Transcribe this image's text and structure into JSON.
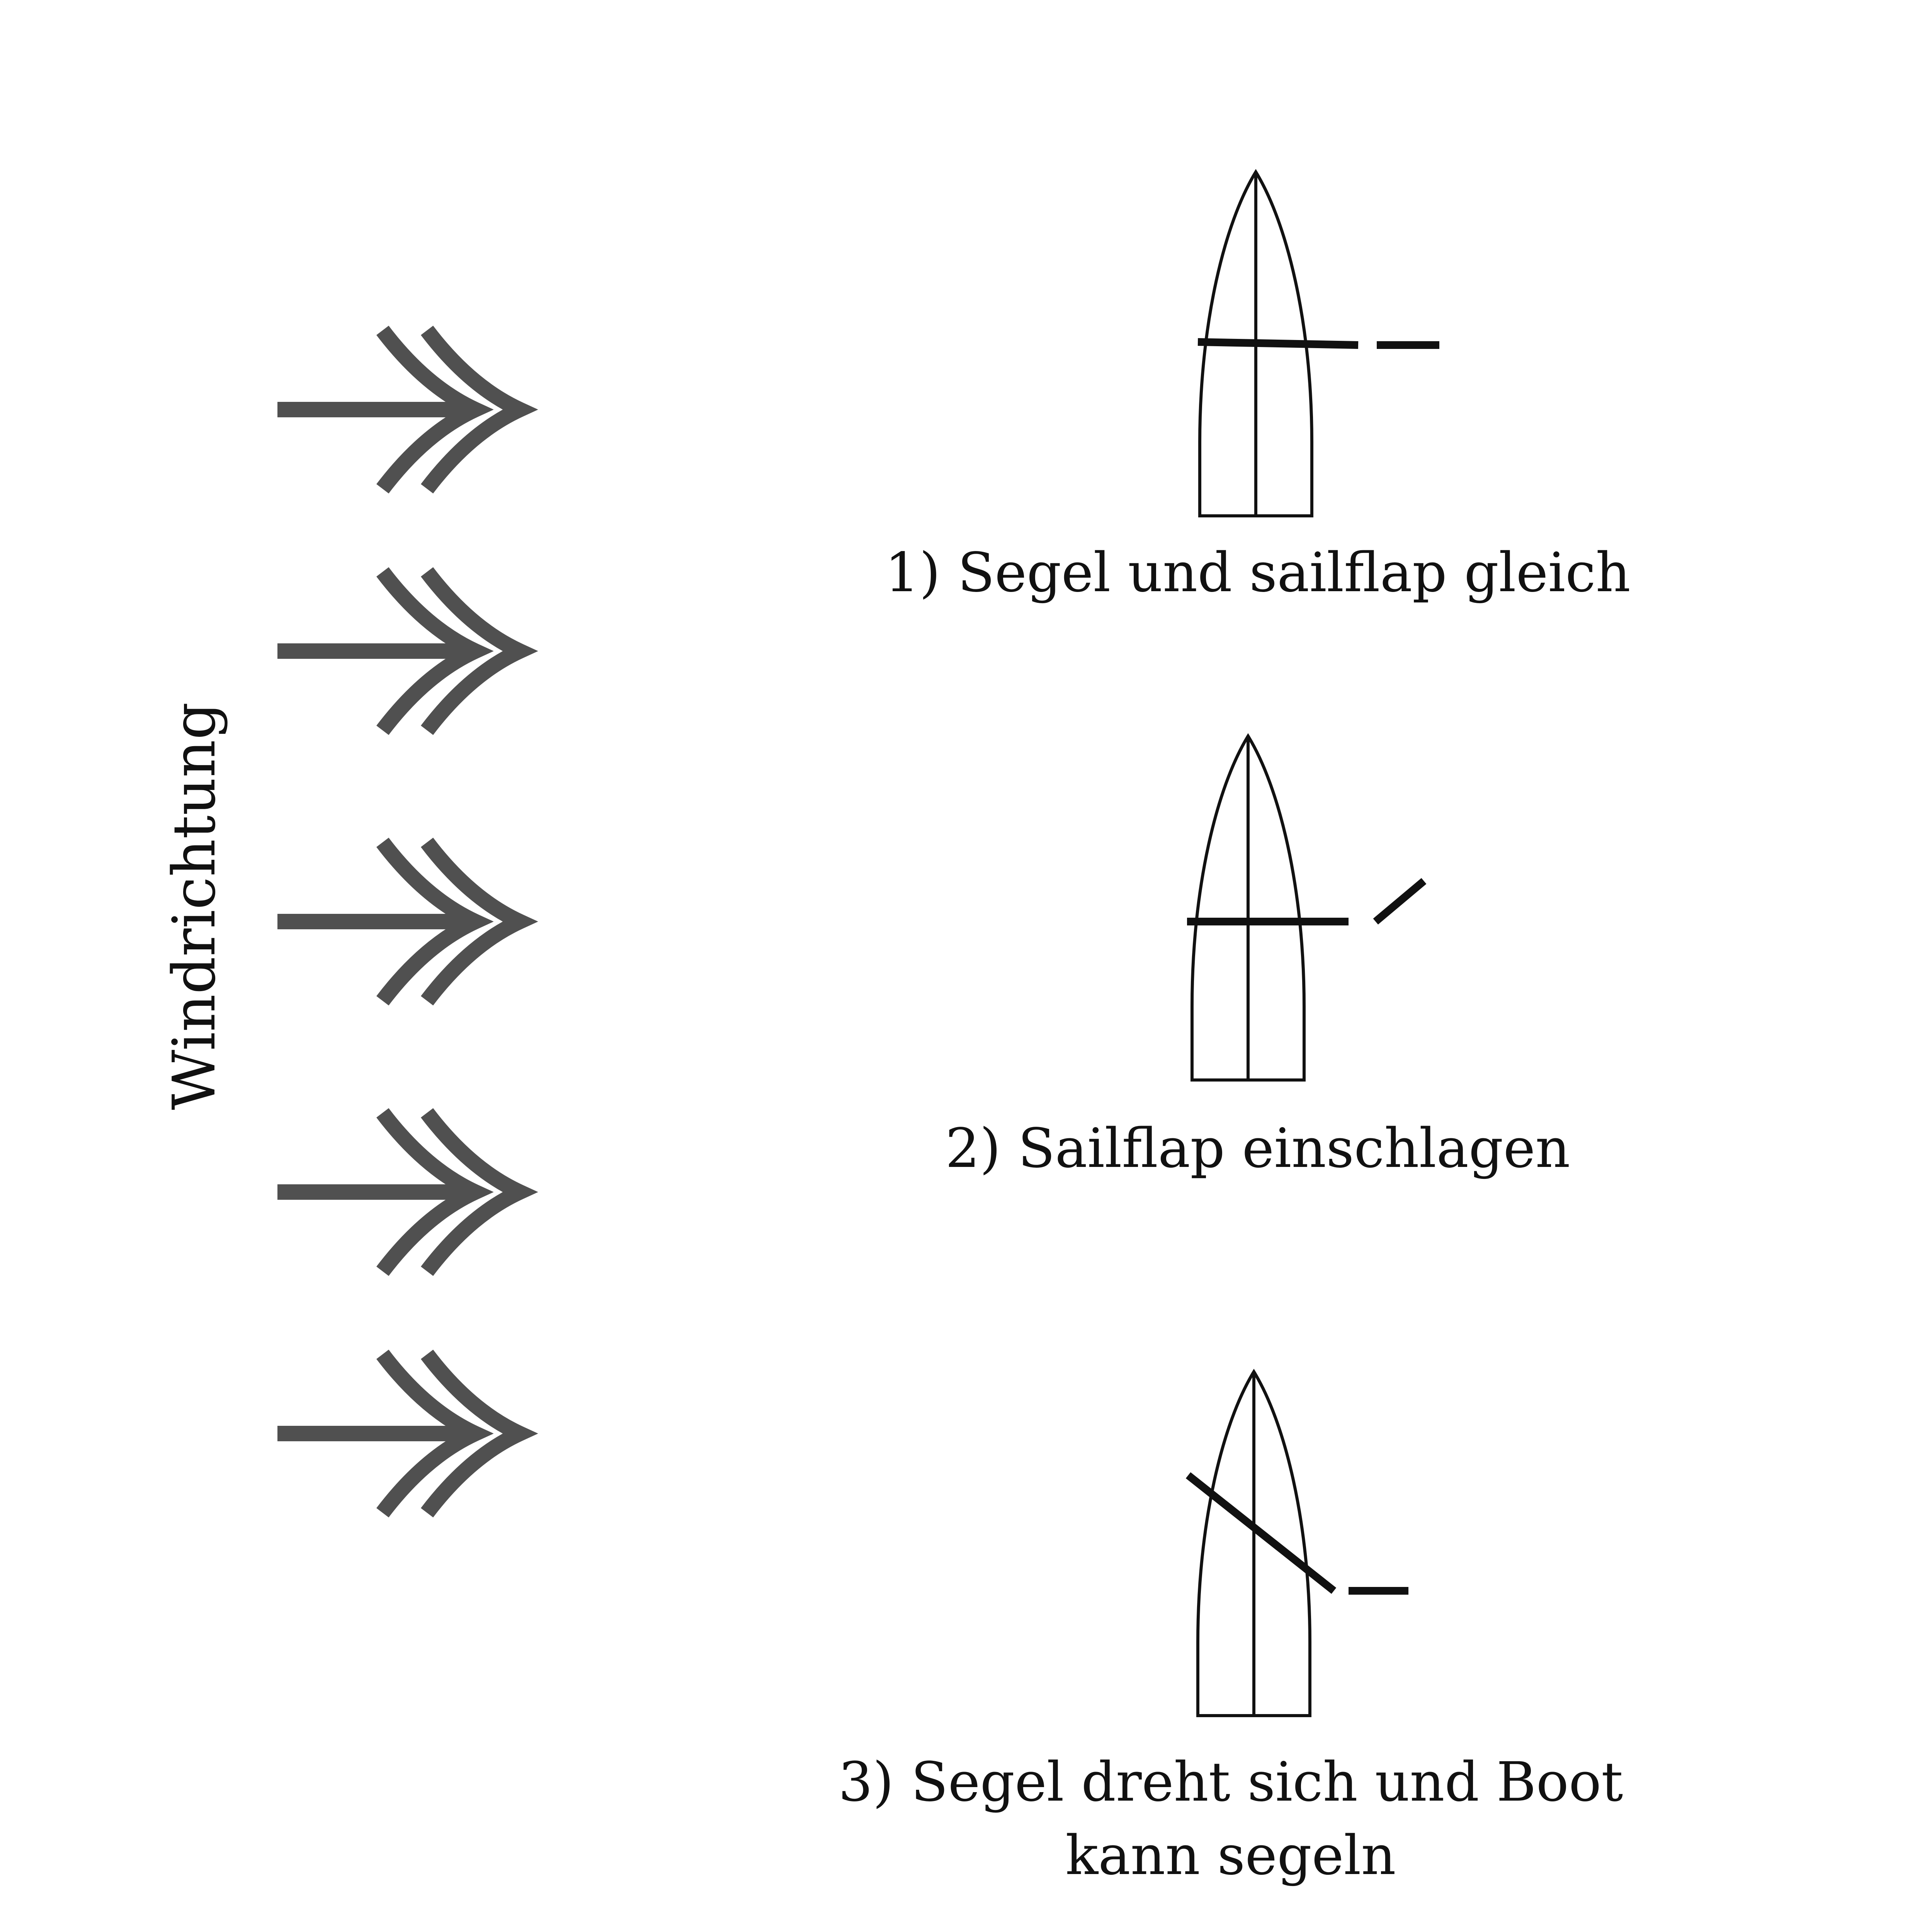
{
  "wind": {
    "label": "Windrichtung",
    "arrow_count": 5,
    "arrow_color": "#505050",
    "direction": "right"
  },
  "steps": [
    {
      "caption_lines": [
        "1) Segel und sailflap gleich"
      ],
      "sail": "crosswise",
      "flap": "aligned with sail"
    },
    {
      "caption_lines": [
        "2) Sailflap einschlagen"
      ],
      "sail": "crosswise",
      "flap": "turned"
    },
    {
      "caption_lines": [
        "3) Segel dreht sich und Boot",
        "kann segeln"
      ],
      "sail": "turned",
      "flap": "crosswise"
    }
  ],
  "colors": {
    "ink": "#111111",
    "arrows": "#505050",
    "background": "#ffffff"
  }
}
